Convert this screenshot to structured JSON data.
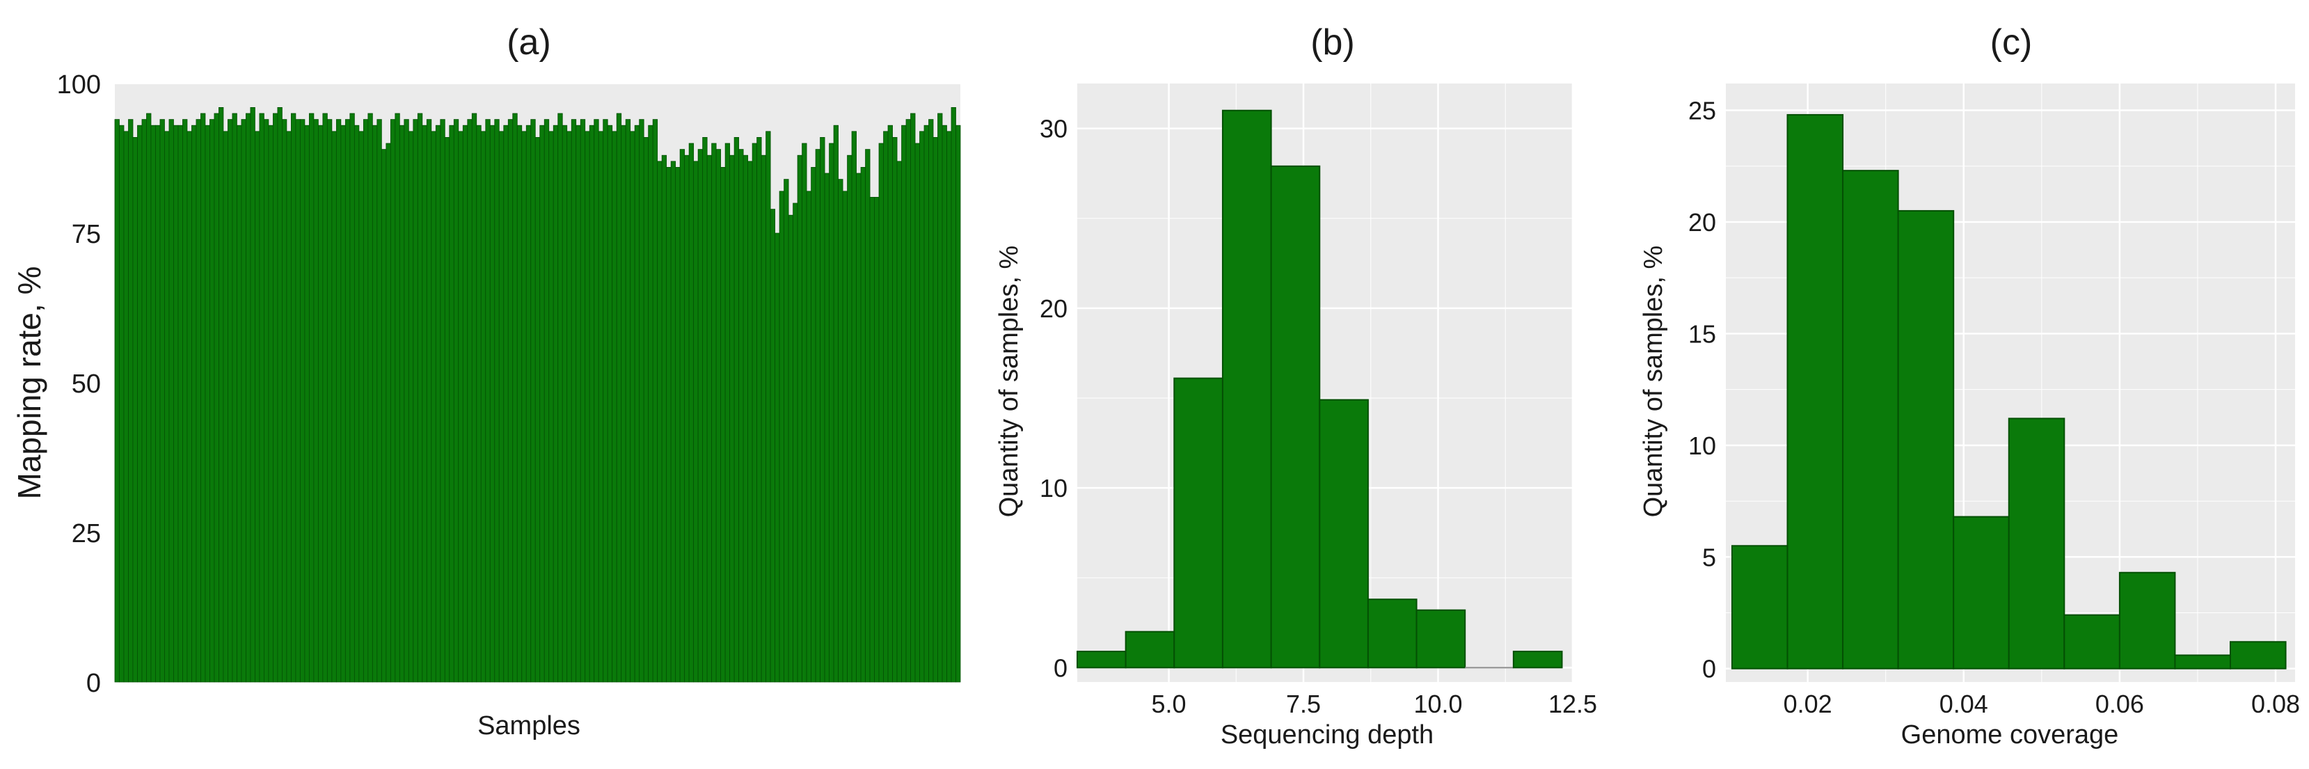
{
  "figure": {
    "colors": {
      "bar": "#0a7a0a",
      "bar_edge": "#045004",
      "panel": "#ebebeb",
      "grid": "#ffffff"
    }
  },
  "chart_data": [
    {
      "type": "bar",
      "panel_label": "(a)",
      "title": "",
      "xlabel": "Samples",
      "ylabel": "Mapping rate, %",
      "ylim": [
        0,
        100
      ],
      "yticks": [
        0,
        25,
        50,
        75,
        100
      ],
      "yticklabels": [
        "0",
        "25",
        "50",
        "75",
        "100"
      ],
      "values": [
        94,
        93,
        92,
        94,
        91,
        93,
        94,
        95,
        93,
        93,
        94,
        92,
        94,
        93,
        93,
        94,
        92,
        93,
        94,
        95,
        93,
        94,
        95,
        96,
        92,
        94,
        95,
        93,
        94,
        95,
        96,
        92,
        95,
        94,
        93,
        95,
        96,
        94,
        92,
        95,
        94,
        94,
        93,
        95,
        94,
        93,
        95,
        94,
        92,
        94,
        93,
        94,
        95,
        93,
        92,
        94,
        95,
        93,
        94,
        89,
        90,
        94,
        95,
        93,
        94,
        92,
        94,
        95,
        93,
        94,
        92,
        93,
        94,
        91,
        93,
        94,
        92,
        93,
        94,
        95,
        93,
        92,
        94,
        93,
        94,
        92,
        93,
        94,
        95,
        93,
        92,
        93,
        94,
        91,
        93,
        94,
        92,
        93,
        95,
        93,
        92,
        94,
        93,
        94,
        92,
        93,
        94,
        92,
        94,
        93,
        92,
        95,
        93,
        94,
        92,
        93,
        94,
        91,
        93,
        94,
        87,
        88,
        86,
        87,
        86,
        89,
        88,
        90,
        87,
        89,
        91,
        88,
        90,
        89,
        86,
        90,
        88,
        91,
        89,
        88,
        87,
        90,
        91,
        88,
        92,
        79,
        75,
        82,
        84,
        78,
        80,
        88,
        90,
        82,
        86,
        89,
        91,
        85,
        90,
        93,
        84,
        82,
        88,
        92,
        85,
        86,
        89,
        81,
        81,
        90,
        92,
        93,
        91,
        87,
        93,
        94,
        95,
        90,
        92,
        93,
        94,
        91,
        95,
        93,
        92,
        96,
        93
      ]
    },
    {
      "type": "bar",
      "panel_label": "(b)",
      "title": "",
      "xlabel": "Sequencing depth",
      "ylabel": "Quantity of samples, %",
      "bin_edges": [
        3.3,
        4.2,
        5.1,
        6.0,
        6.9,
        7.8,
        8.7,
        9.6,
        10.5,
        11.4,
        12.3
      ],
      "values": [
        0.9,
        2.0,
        16.1,
        31.0,
        27.9,
        14.9,
        3.8,
        3.2,
        0,
        0.9
      ],
      "xlim": [
        3.3,
        12.5
      ],
      "xticks": [
        5.0,
        7.5,
        10.0,
        12.5
      ],
      "xticklabels": [
        "5.0",
        "7.5",
        "10.0",
        "12.5"
      ],
      "ylim": [
        -0.8,
        32.5
      ],
      "yticks": [
        0,
        10,
        20,
        30
      ],
      "yticklabels": [
        "0",
        "10",
        "20",
        "30"
      ]
    },
    {
      "type": "bar",
      "panel_label": "(c)",
      "title": "",
      "xlabel": "Genome coverage",
      "ylabel": "Quantity of samples, %",
      "bin_edges": [
        0.0103,
        0.0174,
        0.0245,
        0.0316,
        0.0387,
        0.0458,
        0.0529,
        0.06,
        0.0671,
        0.0742,
        0.0813
      ],
      "values": [
        5.5,
        24.8,
        22.3,
        20.5,
        6.8,
        11.2,
        2.4,
        4.3,
        0.6,
        1.2
      ],
      "xlim": [
        0.0095,
        0.0825
      ],
      "xticks": [
        0.02,
        0.04,
        0.06,
        0.08
      ],
      "xticklabels": [
        "0.02",
        "0.04",
        "0.06",
        "0.08"
      ],
      "ylim": [
        -0.6,
        26.2
      ],
      "yticks": [
        0,
        5,
        10,
        15,
        20,
        25
      ],
      "yticklabels": [
        "0",
        "5",
        "10",
        "15",
        "20",
        "25"
      ]
    }
  ]
}
